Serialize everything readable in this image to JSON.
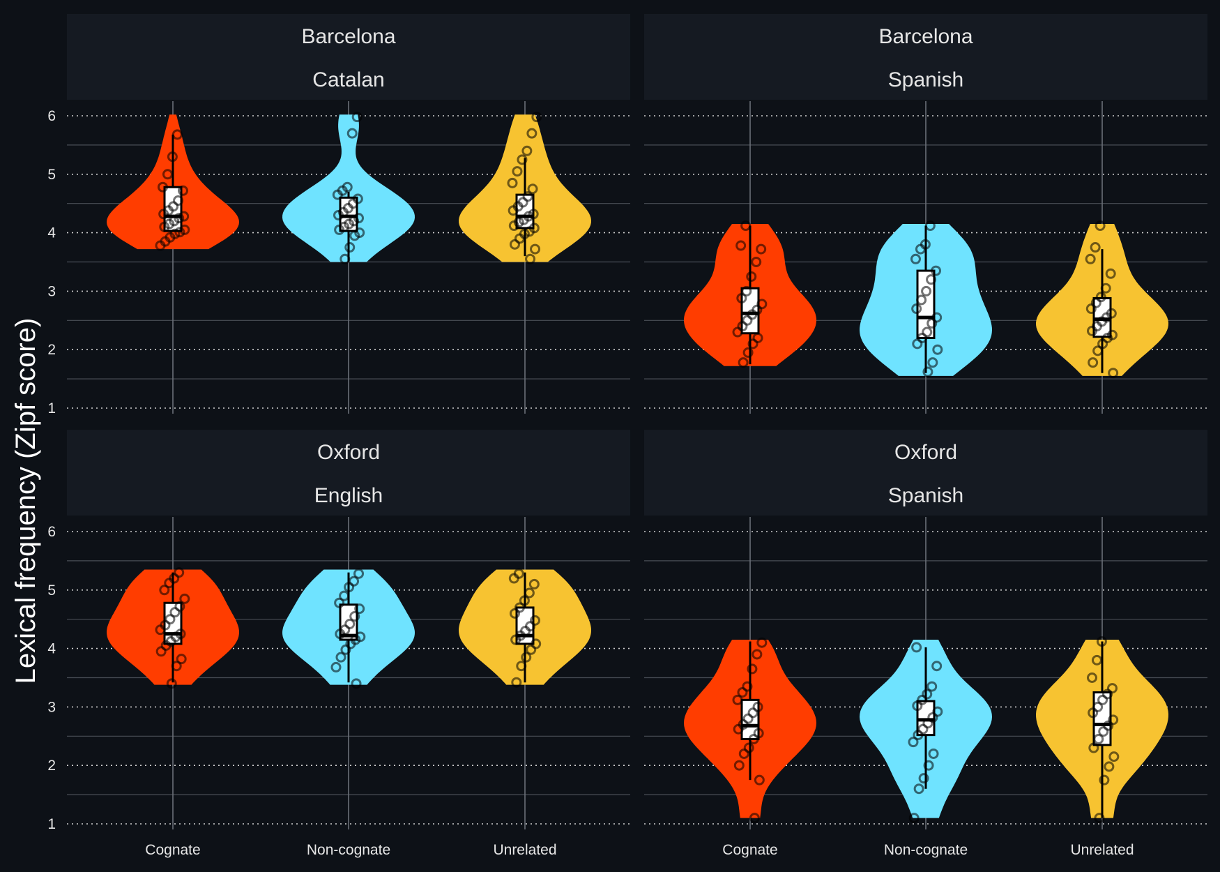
{
  "chart_data": {
    "type": "violin",
    "ylabel": "Lexical frequency (Zipf score)",
    "categories": [
      "Cognate",
      "Non-cognate",
      "Unrelated"
    ],
    "yticks": [
      1,
      2,
      3,
      4,
      5,
      6
    ],
    "ylim": [
      1,
      6
    ],
    "grid": true,
    "colors": {
      "Cognate": "#ff3d00",
      "Non-cognate": "#6fe3ff",
      "Unrelated": "#f7c331"
    },
    "panels": [
      {
        "strip": [
          "Barcelona",
          "Catalan"
        ],
        "groups": [
          {
            "category": "Cognate",
            "min": 3.72,
            "max": 6.02,
            "q1": 4.03,
            "median": 4.28,
            "q3": 4.78,
            "whisker_low": 4.03,
            "whisker_high": 5.68,
            "points": [
              3.78,
              3.85,
              3.92,
              3.98,
              4.01,
              4.05,
              4.1,
              4.15,
              4.2,
              4.25,
              4.28,
              4.32,
              4.38,
              4.45,
              4.55,
              4.72,
              4.78,
              5.0,
              5.3,
              5.68
            ]
          },
          {
            "category": "Non-cognate",
            "min": 3.5,
            "max": 6.02,
            "q1": 4.03,
            "median": 4.28,
            "q3": 4.6,
            "whisker_low": 3.5,
            "whisker_high": 4.7,
            "points": [
              3.55,
              3.75,
              3.95,
              4.0,
              4.05,
              4.1,
              4.15,
              4.2,
              4.25,
              4.3,
              4.35,
              4.42,
              4.5,
              4.58,
              4.65,
              4.72,
              4.78,
              5.7,
              5.98
            ]
          },
          {
            "category": "Unrelated",
            "min": 3.5,
            "max": 6.02,
            "q1": 4.08,
            "median": 4.28,
            "q3": 4.65,
            "whisker_low": 3.6,
            "whisker_high": 5.28,
            "points": [
              3.55,
              3.72,
              3.8,
              3.9,
              3.98,
              4.02,
              4.08,
              4.12,
              4.18,
              4.22,
              4.28,
              4.32,
              4.38,
              4.45,
              4.52,
              4.62,
              4.75,
              4.85,
              5.05,
              5.25,
              5.4,
              5.7,
              5.98
            ]
          }
        ]
      },
      {
        "strip": [
          "Barcelona",
          "Spanish"
        ],
        "groups": [
          {
            "category": "Cognate",
            "min": 1.72,
            "max": 4.15,
            "q1": 2.28,
            "median": 2.62,
            "q3": 3.05,
            "whisker_low": 1.75,
            "whisker_high": 4.12,
            "points": [
              1.78,
              1.95,
              2.1,
              2.2,
              2.3,
              2.4,
              2.5,
              2.6,
              2.68,
              2.78,
              2.88,
              3.0,
              3.25,
              3.5,
              3.72,
              3.78,
              4.12
            ]
          },
          {
            "category": "Non-cognate",
            "min": 1.55,
            "max": 4.15,
            "q1": 2.2,
            "median": 2.55,
            "q3": 3.35,
            "whisker_low": 1.6,
            "whisker_high": 4.12,
            "points": [
              1.62,
              1.78,
              2.0,
              2.1,
              2.2,
              2.3,
              2.45,
              2.55,
              2.7,
              2.85,
              3.0,
              3.2,
              3.35,
              3.55,
              3.72,
              3.8,
              4.12
            ]
          },
          {
            "category": "Unrelated",
            "min": 1.55,
            "max": 4.15,
            "q1": 2.22,
            "median": 2.52,
            "q3": 2.88,
            "whisker_low": 1.6,
            "whisker_high": 3.72,
            "points": [
              1.6,
              1.78,
              1.98,
              2.1,
              2.2,
              2.25,
              2.32,
              2.4,
              2.48,
              2.55,
              2.62,
              2.7,
              2.8,
              2.9,
              3.05,
              3.3,
              3.55,
              3.75,
              4.12
            ]
          }
        ]
      },
      {
        "strip": [
          "Oxford",
          "English"
        ],
        "groups": [
          {
            "category": "Cognate",
            "min": 3.38,
            "max": 5.35,
            "q1": 4.08,
            "median": 4.25,
            "q3": 4.78,
            "whisker_low": 3.42,
            "whisker_high": 5.3,
            "points": [
              3.4,
              3.7,
              3.82,
              3.95,
              4.05,
              4.12,
              4.2,
              4.25,
              4.32,
              4.4,
              4.5,
              4.62,
              4.72,
              4.85,
              5.0,
              5.12,
              5.2,
              5.3
            ]
          },
          {
            "category": "Non-cognate",
            "min": 3.38,
            "max": 5.35,
            "q1": 4.15,
            "median": 4.22,
            "q3": 4.75,
            "whisker_low": 3.42,
            "whisker_high": 5.3,
            "points": [
              3.4,
              3.68,
              3.85,
              3.98,
              4.08,
              4.15,
              4.2,
              4.25,
              4.32,
              4.42,
              4.55,
              4.68,
              4.78,
              4.9,
              5.05,
              5.15,
              5.28
            ]
          },
          {
            "category": "Unrelated",
            "min": 3.38,
            "max": 5.35,
            "q1": 4.08,
            "median": 4.22,
            "q3": 4.7,
            "whisker_low": 3.42,
            "whisker_high": 5.3,
            "points": [
              3.42,
              3.7,
              3.85,
              3.98,
              4.08,
              4.15,
              4.22,
              4.3,
              4.38,
              4.48,
              4.6,
              4.7,
              4.82,
              4.95,
              5.1,
              5.2,
              5.28
            ]
          }
        ]
      },
      {
        "strip": [
          "Oxford",
          "Spanish"
        ],
        "groups": [
          {
            "category": "Cognate",
            "min": 1.1,
            "max": 4.15,
            "q1": 2.45,
            "median": 2.68,
            "q3": 3.12,
            "whisker_low": 1.75,
            "whisker_high": 4.12,
            "points": [
              1.1,
              1.75,
              2.0,
              2.2,
              2.3,
              2.45,
              2.55,
              2.62,
              2.7,
              2.8,
              2.9,
              3.0,
              3.12,
              3.25,
              3.35,
              3.65,
              3.9,
              4.1
            ]
          },
          {
            "category": "Non-cognate",
            "min": 1.1,
            "max": 4.15,
            "q1": 2.52,
            "median": 2.78,
            "q3": 3.1,
            "whisker_low": 1.6,
            "whisker_high": 4.02,
            "points": [
              1.1,
              1.6,
              1.78,
              2.0,
              2.2,
              2.4,
              2.52,
              2.62,
              2.72,
              2.82,
              2.92,
              3.02,
              3.12,
              3.22,
              3.35,
              3.7,
              4.02
            ]
          },
          {
            "category": "Unrelated",
            "min": 1.1,
            "max": 4.15,
            "q1": 2.35,
            "median": 2.7,
            "q3": 3.25,
            "whisker_low": 1.1,
            "whisker_high": 4.12,
            "points": [
              1.1,
              1.75,
              1.98,
              2.15,
              2.3,
              2.45,
              2.58,
              2.68,
              2.78,
              2.9,
              3.0,
              3.12,
              3.22,
              3.32,
              3.5,
              3.8,
              4.12
            ]
          }
        ]
      }
    ]
  }
}
